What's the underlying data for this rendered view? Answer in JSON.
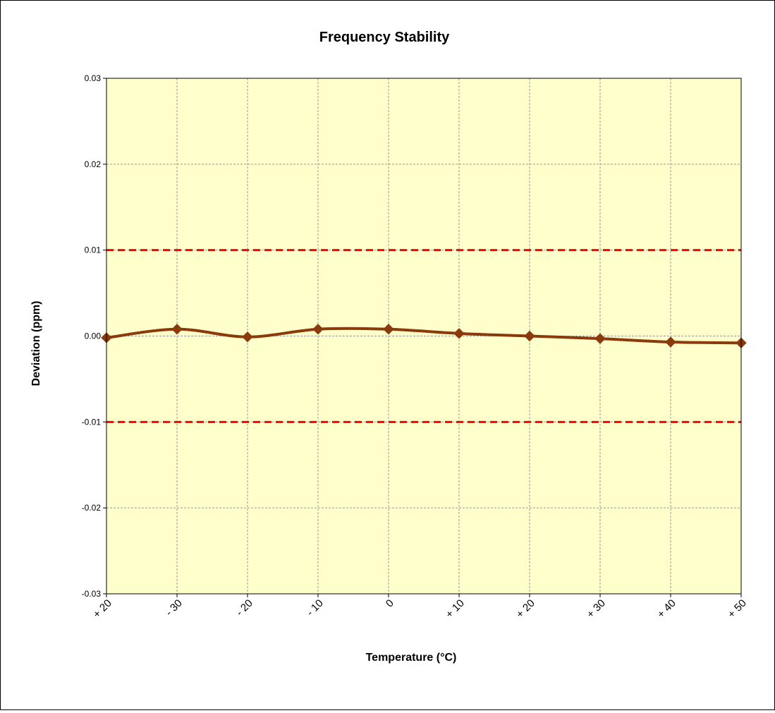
{
  "chart_data": {
    "type": "line",
    "title": "Frequency Stability",
    "xlabel": "Temperature (°C)",
    "ylabel": "Deviation  (ppm)",
    "categories": [
      "+ 20",
      "- 30",
      "- 20",
      "- 10",
      "0",
      "+ 10",
      "+ 20",
      "+ 30",
      "+ 40",
      "+ 50"
    ],
    "y_ticks": [
      "0.03",
      "0.02",
      "0.01",
      "0.00",
      "-0.01",
      "-0.02",
      "-0.03"
    ],
    "ylim": [
      -0.03,
      0.03
    ],
    "grid": true,
    "legend": "none",
    "series": [
      {
        "values": [
          -0.0002,
          0.0008,
          -0.0001,
          0.0008,
          0.0008,
          0.0003,
          0.0,
          -0.0003,
          -0.0007,
          -0.0008
        ],
        "color": "#8B3A0B",
        "marker": "diamond",
        "smooth": true
      }
    ],
    "limit_lines": [
      {
        "value": 0.01,
        "color": "#FF0000",
        "style": "dashed"
      },
      {
        "value": -0.01,
        "color": "#FF0000",
        "style": "dashed"
      }
    ],
    "plot_background": "#FFFFCC",
    "grid_color": "#999999"
  }
}
